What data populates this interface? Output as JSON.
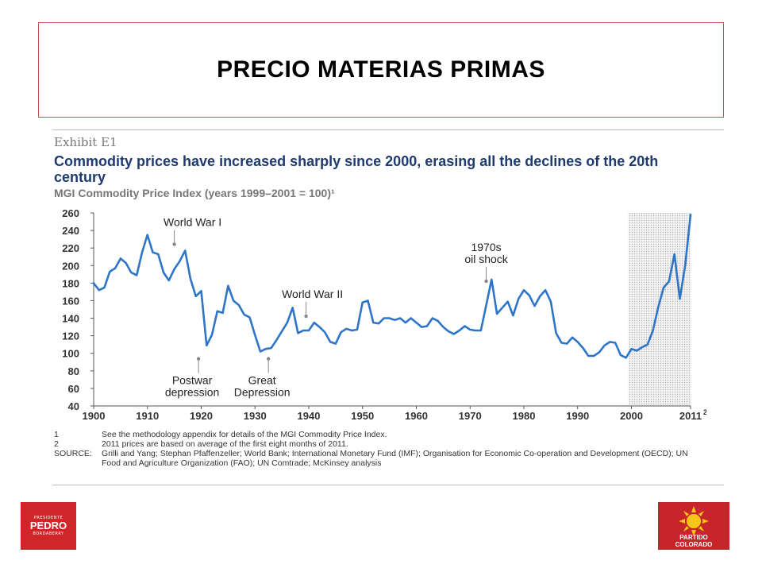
{
  "slide": {
    "title": "PRECIO MATERIAS PRIMAS",
    "logo_left": {
      "small": "PRESIDENTE",
      "big": "PEDRO",
      "small2": "BORDABERRY",
      "accent": "#d0262a"
    },
    "logo_right": {
      "line1": "PARTIDO",
      "line2": "COLORADO",
      "accent": "#c8252a",
      "sun": "#f5c518"
    }
  },
  "exhibit": {
    "label": "Exhibit E1",
    "headline": "Commodity prices have increased sharply since 2000, erasing all the declines of the 20th century",
    "subtitle": "MGI Commodity Price Index (years 1999–2001 = 100)¹"
  },
  "notes": [
    {
      "key": "1",
      "text": "See the methodology appendix for details of the MGI Commodity Price Index."
    },
    {
      "key": "2",
      "text": "2011 prices are based on average of the first eight months of 2011."
    },
    {
      "key": "SOURCE:",
      "text": "Grilli and Yang; Stephan Pfaffenzeller; World Bank; International Monetary Fund (IMF); Organisation for Economic Co-operation and Development (OECD); UN Food and Agriculture Organization (FAO); UN Comtrade; McKinsey analysis"
    }
  ],
  "chart_data": {
    "type": "line",
    "title": "Commodity prices have increased sharply since 2000, erasing all the declines of the 20th century",
    "ylabel": "MGI Commodity Price Index (years 1999–2001 = 100)¹",
    "xlabel": "",
    "xlim": [
      1900,
      2011
    ],
    "ylim": [
      40,
      260
    ],
    "x_ticks": [
      1900,
      1910,
      1920,
      1930,
      1940,
      1950,
      1960,
      1970,
      1980,
      1990,
      2000
    ],
    "x_tick_labels": [
      "1900",
      "1910",
      "1920",
      "1930",
      "1940",
      "1950",
      "1960",
      "1970",
      "1980",
      "1990",
      "2000"
    ],
    "last_tick": {
      "x": 2011,
      "label": "2011",
      "sup": "2"
    },
    "y_ticks": [
      40,
      60,
      80,
      100,
      120,
      140,
      160,
      180,
      200,
      220,
      240,
      260
    ],
    "shaded_region": [
      2000,
      2011
    ],
    "line_color": "#2e75c8",
    "series": [
      {
        "x": [
          1900,
          1901,
          1902,
          1903,
          1904,
          1905,
          1906,
          1907,
          1908,
          1909,
          1910,
          1911,
          1912,
          1913,
          1914,
          1915,
          1916,
          1917,
          1918,
          1919,
          1920,
          1921,
          1922,
          1923,
          1924,
          1925,
          1926,
          1927,
          1928,
          1929,
          1930,
          1931,
          1932,
          1933,
          1934,
          1935,
          1936,
          1937,
          1938,
          1939,
          1940,
          1941,
          1942,
          1943,
          1944,
          1945,
          1946,
          1947,
          1948,
          1949,
          1950,
          1951,
          1952,
          1953,
          1954,
          1955,
          1956,
          1957,
          1958,
          1959,
          1960,
          1961,
          1962,
          1963,
          1964,
          1965,
          1966,
          1967,
          1968,
          1969,
          1970,
          1971,
          1972,
          1973,
          1974,
          1975,
          1976,
          1977,
          1978,
          1979,
          1980,
          1981,
          1982,
          1983,
          1984,
          1985,
          1986,
          1987,
          1988,
          1989,
          1990,
          1991,
          1992,
          1993,
          1994,
          1995,
          1996,
          1997,
          1998,
          1999,
          2000,
          2001,
          2002,
          2003,
          2004,
          2005,
          2006,
          2007,
          2008,
          2009,
          2010,
          2011
        ],
        "y": [
          180,
          172,
          175,
          193,
          197,
          208,
          203,
          192,
          189,
          215,
          235,
          215,
          213,
          192,
          183,
          196,
          205,
          217,
          185,
          165,
          171,
          109,
          121,
          148,
          146,
          177,
          160,
          155,
          144,
          141,
          121,
          102,
          105,
          106,
          115,
          125,
          135,
          152,
          123,
          126,
          126,
          135,
          130,
          124,
          113,
          111,
          124,
          128,
          126,
          127,
          158,
          160,
          135,
          134,
          140,
          140,
          138,
          140,
          135,
          140,
          135,
          130,
          131,
          140,
          137,
          130,
          125,
          122,
          126,
          131,
          127,
          126,
          126,
          155,
          184,
          145,
          152,
          159,
          143,
          162,
          172,
          166,
          154,
          165,
          172,
          159,
          123,
          112,
          111,
          118,
          113,
          106,
          97,
          97,
          101,
          109,
          113,
          112,
          98,
          95,
          105,
          103,
          107,
          110,
          126,
          153,
          175,
          182,
          213,
          162,
          200,
          258
        ]
      }
    ],
    "annotations": [
      {
        "text": "World War I",
        "x": 1915,
        "y": 217,
        "position": "above"
      },
      {
        "text": "Postwar",
        "text2": "depression",
        "x": 1919.5,
        "y": 101,
        "position": "below"
      },
      {
        "text": "Great",
        "text2": "Depression",
        "x": 1932.5,
        "y": 101,
        "position": "below"
      },
      {
        "text": "World War II",
        "x": 1939.5,
        "y": 135,
        "position": "above"
      },
      {
        "text": "1970s",
        "text2": "oil shock",
        "x": 1973,
        "y": 175,
        "position": "above"
      }
    ]
  }
}
